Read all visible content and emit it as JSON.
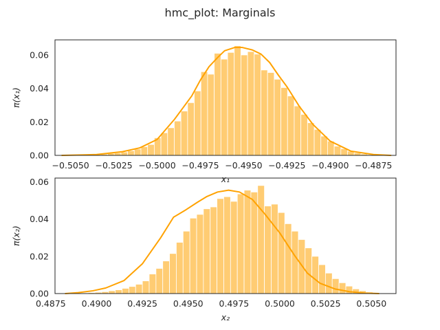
{
  "figure": {
    "title": "hmc_plot: Marginals"
  },
  "colors": {
    "bar_fill": "#FFCC73",
    "kde_line": "#FFA200",
    "axis": "#262626"
  },
  "chart_data": [
    {
      "type": "bar",
      "subtype": "histogram_with_kde",
      "xlabel": "x₁",
      "ylabel": "π(x₁)",
      "xlim": [
        -0.5059,
        -0.4862
      ],
      "ylim": [
        0,
        0.069
      ],
      "xticks": [
        -0.505,
        -0.5025,
        -0.5,
        -0.4975,
        -0.495,
        -0.4925,
        -0.49,
        -0.4875
      ],
      "xtick_labels": [
        "−0.5050",
        "−0.5025",
        "−0.5000",
        "−0.4975",
        "−0.4950",
        "−0.4925",
        "−0.4900",
        "−0.4875"
      ],
      "yticks": [
        0,
        0.02,
        0.04,
        0.06
      ],
      "ytick_labels": [
        "0.00",
        "0.02",
        "0.04",
        "0.06"
      ],
      "grid": false,
      "bin_edges_start": -0.5044,
      "bin_width": 0.000385,
      "values": [
        0.0,
        0.0,
        0.0005,
        0.0007,
        0.0012,
        0.0015,
        0.002,
        0.0028,
        0.0038,
        0.0052,
        0.0065,
        0.0105,
        0.0135,
        0.0165,
        0.0205,
        0.0265,
        0.0315,
        0.0385,
        0.05,
        0.0485,
        0.061,
        0.0575,
        0.0615,
        0.0655,
        0.06,
        0.062,
        0.0605,
        0.051,
        0.0495,
        0.0455,
        0.0405,
        0.0355,
        0.0295,
        0.0245,
        0.0195,
        0.0155,
        0.0115,
        0.0085,
        0.0055,
        0.004,
        0.0025,
        0.0015,
        0.0008,
        0.0004
      ],
      "kde": {
        "x": [
          -0.5055,
          -0.5035,
          -0.502,
          -0.501,
          -0.5,
          -0.499,
          -0.498,
          -0.4975,
          -0.497,
          -0.4965,
          -0.4961,
          -0.4955,
          -0.4951,
          -0.4945,
          -0.494,
          -0.4935,
          -0.493,
          -0.4925,
          -0.4918,
          -0.491,
          -0.49,
          -0.4888,
          -0.4875,
          -0.4865
        ],
        "y": [
          0.0,
          0.0005,
          0.0022,
          0.0045,
          0.0095,
          0.0215,
          0.0355,
          0.045,
          0.053,
          0.0585,
          0.0625,
          0.0645,
          0.0645,
          0.063,
          0.0605,
          0.0555,
          0.048,
          0.041,
          0.0295,
          0.0185,
          0.0085,
          0.0025,
          0.0005,
          0.0
        ]
      }
    },
    {
      "type": "bar",
      "subtype": "histogram_with_kde",
      "xlabel": "x₂",
      "ylabel": "π(x₂)",
      "xlim": [
        0.48773,
        0.50634
      ],
      "ylim": [
        0,
        0.062
      ],
      "xticks": [
        0.4875,
        0.49,
        0.4925,
        0.495,
        0.4975,
        0.5,
        0.5025,
        0.505
      ],
      "xtick_labels": [
        "0.4875",
        "0.4900",
        "0.4925",
        "0.4950",
        "0.4975",
        "0.5000",
        "0.5025",
        "0.5050"
      ],
      "yticks": [
        0,
        0.02,
        0.04,
        0.06
      ],
      "ytick_labels": [
        "0.00",
        "0.02",
        "0.04",
        "0.06"
      ],
      "grid": false,
      "bin_edges_start": 0.4888,
      "bin_width": 0.00037,
      "values": [
        0.0,
        0.0003,
        0.0005,
        0.0007,
        0.001,
        0.0015,
        0.002,
        0.0028,
        0.0038,
        0.005,
        0.0068,
        0.0105,
        0.0135,
        0.0175,
        0.0215,
        0.0275,
        0.0335,
        0.0405,
        0.0425,
        0.0455,
        0.0465,
        0.051,
        0.052,
        0.0495,
        0.0535,
        0.0555,
        0.0545,
        0.058,
        0.047,
        0.048,
        0.0435,
        0.0375,
        0.0335,
        0.029,
        0.0245,
        0.02,
        0.0155,
        0.011,
        0.008,
        0.0058,
        0.004,
        0.0025,
        0.0015,
        0.0008,
        0.0003
      ],
      "kde": {
        "x": [
          0.4883,
          0.489,
          0.4898,
          0.4905,
          0.4915,
          0.4925,
          0.4935,
          0.4942,
          0.4948,
          0.4955,
          0.496,
          0.4966,
          0.4972,
          0.4978,
          0.4985,
          0.4992,
          0.5,
          0.5008,
          0.5015,
          0.5022,
          0.503,
          0.5038,
          0.5046,
          0.5054
        ],
        "y": [
          0.0,
          0.0005,
          0.0015,
          0.003,
          0.007,
          0.016,
          0.03,
          0.041,
          0.0445,
          0.049,
          0.052,
          0.0545,
          0.0555,
          0.0545,
          0.0505,
          0.0425,
          0.0325,
          0.0205,
          0.011,
          0.0055,
          0.0025,
          0.001,
          0.0003,
          0.0
        ]
      }
    }
  ]
}
